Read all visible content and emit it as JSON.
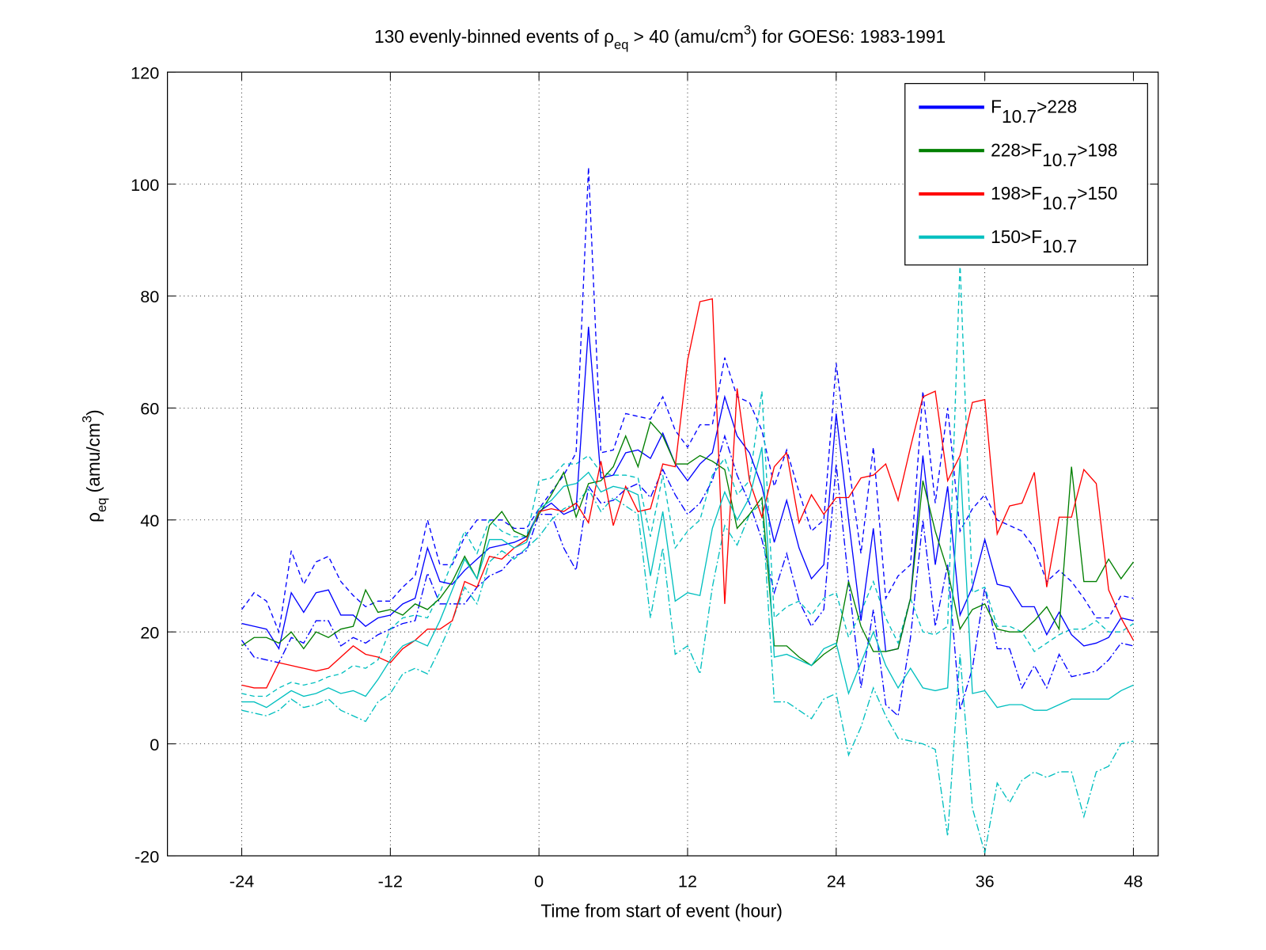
{
  "chart_data": {
    "type": "line",
    "title": [
      "130 evenly-binned events of ρ",
      "eq",
      " > 40 (amu/cm",
      "3",
      ") for GOES6: 1983-1991"
    ],
    "x_label": "Time from start of event (hour)",
    "y_label": [
      "ρ",
      "eq",
      " (amu/cm",
      "3",
      ")"
    ],
    "xlim": [
      -30,
      50
    ],
    "xticks": [
      -24,
      -12,
      0,
      12,
      24,
      36,
      48
    ],
    "ylim": [
      -20,
      120
    ],
    "yticks": [
      -20,
      0,
      20,
      40,
      60,
      80,
      100,
      120
    ],
    "grid": true,
    "legend": "upper right",
    "x": [
      -24,
      -23,
      -22,
      -21,
      -20,
      -19,
      -18,
      -17,
      -16,
      -15,
      -14,
      -13,
      -12,
      -11,
      -10,
      -9,
      -8,
      -7,
      -6,
      -5,
      -4,
      -3,
      -2,
      -1,
      0,
      1,
      2,
      3,
      4,
      5,
      6,
      7,
      8,
      9,
      10,
      11,
      12,
      13,
      14,
      15,
      16,
      17,
      18,
      19,
      20,
      21,
      22,
      23,
      24,
      25,
      26,
      27,
      28,
      29,
      30,
      31,
      32,
      33,
      34,
      35,
      36,
      37,
      38,
      39,
      40,
      41,
      42,
      43,
      44,
      45,
      46,
      47,
      48
    ],
    "series": [
      {
        "color": "#0000ff",
        "style": "dashed",
        "values": [
          24,
          27,
          25.5,
          20,
          34.5,
          28.5,
          32.5,
          33.5,
          29,
          26.5,
          24.5,
          25.5,
          25.5,
          28,
          30,
          40,
          32,
          32,
          37,
          40,
          40,
          40,
          38.5,
          38.5,
          42,
          45,
          48,
          52,
          103,
          52,
          52.5,
          59,
          58.5,
          58,
          62,
          56,
          53,
          57,
          57,
          69,
          62,
          61,
          56,
          46,
          52.5,
          45,
          38,
          40,
          68,
          50,
          34,
          53,
          26,
          30,
          32,
          63,
          43,
          60,
          38,
          42,
          44.5,
          40,
          39,
          38,
          35,
          29,
          31,
          29,
          26,
          22.5,
          22.5,
          26.5,
          26
        ]
      },
      {
        "color": "#0000ff",
        "style": "dashdot",
        "values": [
          18.5,
          15.5,
          15,
          14.5,
          19,
          18,
          22,
          22,
          17.5,
          19,
          18,
          19.5,
          20.5,
          21.5,
          22,
          30.5,
          25,
          25,
          25,
          28,
          30,
          31,
          33.5,
          34.5,
          41,
          41,
          35,
          31,
          46,
          43,
          43.5,
          45.5,
          46.5,
          44,
          49,
          44.5,
          41,
          43,
          47,
          55,
          48,
          43,
          36.5,
          27,
          34,
          25.5,
          21,
          24,
          50,
          29,
          10,
          24,
          7,
          5,
          19,
          40,
          21,
          32,
          6,
          13.5,
          28,
          17,
          17,
          10,
          14,
          10,
          16,
          12,
          12.5,
          13,
          15,
          18,
          17.5
        ]
      },
      {
        "color": "#00bfbf",
        "style": "dashed",
        "values": [
          9,
          8.5,
          8.5,
          10,
          11,
          10.5,
          11,
          12,
          12.5,
          14,
          13.5,
          15,
          20.5,
          22.5,
          23,
          22.5,
          27,
          32.5,
          38,
          34,
          40,
          38,
          37,
          37,
          47,
          47.5,
          50,
          50,
          51.5,
          48.5,
          48,
          48,
          47.5,
          37,
          48,
          35,
          38,
          40,
          48,
          51,
          44.5,
          47,
          63,
          22.5,
          24.5,
          25.5,
          23,
          26,
          27,
          19,
          23.5,
          29,
          22.5,
          18,
          26,
          20,
          19.5,
          21,
          86,
          27,
          28,
          21,
          21,
          20,
          16.5,
          18,
          19.5,
          20.5,
          20.5,
          22,
          20,
          20,
          21.5
        ]
      },
      {
        "color": "#00bfbf",
        "style": "dashdot",
        "values": [
          6,
          5.5,
          5,
          6,
          8,
          6.5,
          7,
          8,
          6,
          5,
          4,
          7.5,
          9,
          12.5,
          13.5,
          12.5,
          17,
          22,
          28,
          25,
          32.5,
          34.5,
          33,
          35,
          37,
          40,
          42,
          43,
          45.5,
          41.5,
          44,
          42.5,
          41,
          22.5,
          35,
          16,
          17.5,
          12.5,
          28,
          39,
          35.5,
          41,
          43,
          7.5,
          7.5,
          6,
          4.5,
          8,
          9,
          -2,
          3,
          10,
          5,
          1,
          0.5,
          0,
          -1,
          -16.5,
          16,
          -11.5,
          -19.5,
          -7,
          -10.5,
          -6.5,
          -5,
          -6,
          -5,
          -5,
          -13,
          -5,
          -4,
          0,
          0.5
        ]
      },
      {
        "name": [
          "F",
          "10.7",
          ">228"
        ],
        "color": "#0000ff",
        "style": "solid",
        "values": [
          21.5,
          21,
          20.5,
          17,
          27,
          23.5,
          27,
          27.5,
          23,
          23,
          21,
          22.5,
          23,
          25,
          26,
          35,
          29,
          28.5,
          31,
          33,
          35,
          35.5,
          36,
          37,
          41.5,
          43,
          41,
          42,
          74.5,
          47.5,
          48,
          52,
          52.5,
          51,
          55.5,
          50,
          47,
          50,
          52,
          62,
          55,
          52,
          46,
          36,
          43.5,
          35,
          29.5,
          32,
          59,
          40,
          22,
          38.5,
          16.5,
          17,
          26,
          51.5,
          32,
          46,
          23,
          28,
          36.5,
          28.5,
          28,
          24.5,
          24.5,
          19.5,
          23.5,
          19.5,
          17.5,
          18,
          19,
          22.5,
          22
        ]
      },
      {
        "name": [
          "228>F",
          "10.7",
          ">198"
        ],
        "color": "#007f00",
        "style": "solid",
        "values": [
          17.5,
          19,
          19,
          18,
          20,
          17,
          20,
          19,
          20.5,
          21,
          27.5,
          23.5,
          24,
          23,
          25,
          24,
          26,
          29,
          33.5,
          29.5,
          39,
          41.5,
          38,
          37,
          41,
          44.5,
          48.5,
          40.5,
          46.5,
          47,
          49.5,
          55,
          49.5,
          57.5,
          55,
          50,
          50,
          51.5,
          50.5,
          49,
          38.5,
          41,
          44,
          17.5,
          17.5,
          15.5,
          14,
          16,
          17.5,
          29,
          21,
          16.5,
          16.5,
          17,
          26,
          47,
          38,
          31,
          20.5,
          24,
          25,
          20.5,
          20,
          20,
          22,
          24.5,
          20.5,
          49.5,
          29,
          29,
          33,
          29.5,
          32.5
        ]
      },
      {
        "name": [
          "198>F",
          "10.7",
          ">150"
        ],
        "color": "#ff0000",
        "style": "solid",
        "values": [
          10.5,
          10,
          10,
          14.5,
          14,
          13.5,
          13,
          13.5,
          15.5,
          17.5,
          16,
          15.5,
          14.5,
          17,
          18.5,
          20.5,
          20.5,
          22,
          29,
          28,
          33.5,
          33,
          35,
          36.5,
          41.5,
          42,
          41.5,
          43,
          39.5,
          50.5,
          39,
          46,
          41.5,
          42,
          50,
          49.5,
          68.5,
          79,
          79.5,
          25,
          63.5,
          47,
          40.5,
          49.5,
          52,
          39.5,
          44.5,
          41,
          44,
          44,
          47.5,
          48,
          50,
          43.5,
          53,
          62,
          63,
          47,
          51.5,
          61,
          61.5,
          37.5,
          42.5,
          43,
          48.5,
          28,
          40.5,
          40.5,
          49,
          46.5,
          27.5,
          22.5,
          18.5
        ]
      },
      {
        "name": [
          "150>F",
          "10.7"
        ],
        "color": "#00bfbf",
        "style": "solid",
        "values": [
          7.5,
          7.5,
          6.5,
          8,
          9.5,
          8.5,
          9,
          10,
          9,
          9.5,
          8.5,
          11.5,
          15,
          17.5,
          18.5,
          17.5,
          22,
          27.5,
          33,
          29.5,
          36.5,
          36.5,
          35,
          36,
          42,
          43.5,
          46,
          46.5,
          48.5,
          45,
          46,
          45.5,
          44.5,
          30,
          41.5,
          25.5,
          27,
          26.5,
          38.5,
          45,
          40,
          44,
          53,
          15.5,
          16,
          15,
          14,
          17,
          18,
          9,
          14.5,
          20,
          14,
          10,
          13.5,
          10,
          9.5,
          10,
          51,
          9,
          9.5,
          6.5,
          7,
          7,
          6,
          6,
          7,
          8,
          8,
          8,
          8,
          9.5,
          10.5
        ]
      }
    ]
  }
}
